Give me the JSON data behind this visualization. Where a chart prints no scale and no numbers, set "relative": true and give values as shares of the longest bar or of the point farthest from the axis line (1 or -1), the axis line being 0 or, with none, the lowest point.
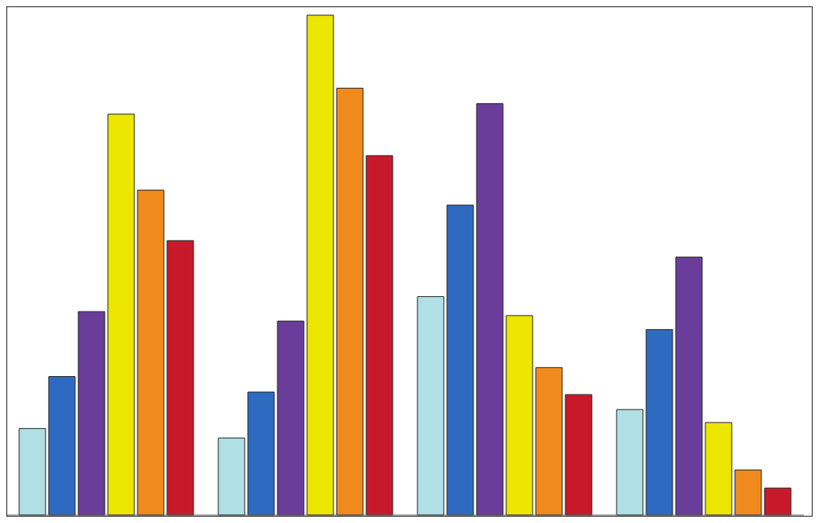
{
  "chart_data": {
    "type": "bar",
    "relative": true,
    "categories": [
      null,
      null,
      null,
      null
    ],
    "series": [
      {
        "color": "#b0e0e6",
        "values": [
          0.173,
          0.154,
          0.437,
          0.211
        ]
      },
      {
        "color": "#2e6bc0",
        "values": [
          0.277,
          0.246,
          0.62,
          0.371
        ]
      },
      {
        "color": "#6a3d9a",
        "values": [
          0.407,
          0.388,
          0.823,
          0.516
        ]
      },
      {
        "color": "#ece600",
        "values": [
          0.802,
          1,
          0.399,
          0.185
        ]
      },
      {
        "color": "#f08a1c",
        "values": [
          0.65,
          0.854,
          0.295,
          0.09
        ]
      },
      {
        "color": "#c8192a",
        "values": [
          0.549,
          0.719,
          0.241,
          0.054
        ]
      }
    ]
  }
}
